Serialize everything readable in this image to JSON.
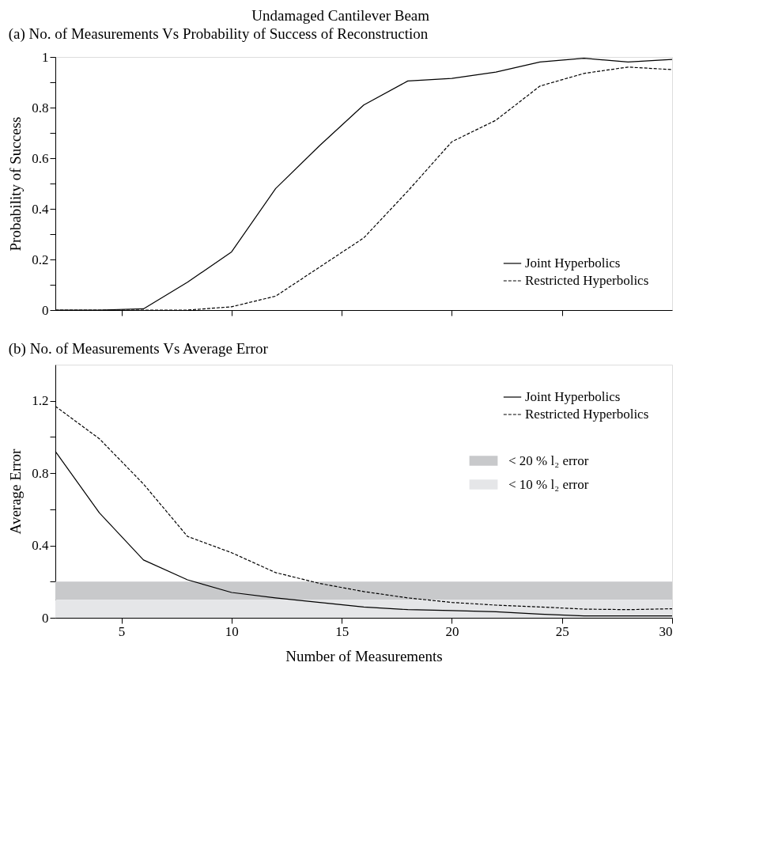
{
  "chart_data": [
    {
      "type": "line",
      "title": "Undamaged Cantilever Beam",
      "subtitle": "(a)  No. of Measurements Vs Probability of Success of Reconstruction",
      "ylabel": "Probability of Success",
      "x": [
        2,
        4,
        6,
        8,
        10,
        12,
        14,
        16,
        18,
        20,
        22,
        24,
        26,
        28,
        30
      ],
      "series": [
        {
          "name": "Joint Hyperbolics",
          "color": "#000000",
          "line_style": "solid",
          "values": [
            0,
            0,
            0.005,
            0.11,
            0.23,
            0.48,
            0.65,
            0.81,
            0.905,
            0.915,
            0.94,
            0.98,
            0.995,
            0.98,
            0.99
          ]
        },
        {
          "name": "Restricted Hyperbolics",
          "color": "#000000",
          "line_style": "dashed",
          "values": [
            0,
            0,
            0,
            0,
            0.013,
            0.055,
            0.17,
            0.285,
            0.47,
            0.665,
            0.75,
            0.885,
            0.935,
            0.96,
            0.95
          ]
        }
      ],
      "xlim": [
        2,
        30
      ],
      "xticks": [
        5,
        10,
        15,
        20,
        25
      ],
      "ylim": [
        0,
        1
      ],
      "yticks": [
        0,
        {
          "value": 0.1,
          "label": null
        },
        0.2,
        {
          "value": 0.3,
          "label": null
        },
        0.4,
        {
          "value": 0.5,
          "label": null
        },
        0.6,
        {
          "value": 0.7,
          "label": null
        },
        0.8,
        {
          "value": 0.9,
          "label": null
        },
        1
      ],
      "tick_labels": "y",
      "grid": false,
      "legend": "bottom right"
    },
    {
      "type": "line",
      "title": "(b)  No. of Measurements Vs Average Error",
      "xlabel": "Number of Measurements",
      "ylabel": "Average Error",
      "x": [
        2,
        4,
        6,
        8,
        10,
        12,
        14,
        16,
        18,
        20,
        22,
        24,
        26,
        28,
        30
      ],
      "series": [
        {
          "name": "Joint Hyperbolics",
          "color": "#000000",
          "line_style": "solid",
          "values": [
            0.92,
            0.58,
            0.32,
            0.21,
            0.14,
            0.11,
            0.085,
            0.06,
            0.045,
            0.04,
            0.033,
            0.02,
            0.01,
            0.01,
            0.01
          ]
        },
        {
          "name": "Restricted Hyperbolics",
          "color": "#000000",
          "line_style": "dashed",
          "values": [
            1.17,
            0.99,
            0.74,
            0.45,
            0.36,
            0.25,
            0.19,
            0.145,
            0.11,
            0.085,
            0.07,
            0.06,
            0.048,
            0.045,
            0.05
          ]
        }
      ],
      "bands": [
        {
          "axis": "y",
          "from": 0.1,
          "to": 0.2,
          "label": "< 20 % l₂ error",
          "color": "#c8c9cb"
        },
        {
          "axis": "y",
          "from": 0,
          "to": 0.1,
          "label": "< 10 % l₂ error",
          "color": "#e5e6e8"
        }
      ],
      "xlim": [
        2,
        30
      ],
      "xticks": [
        5,
        10,
        15,
        20,
        25,
        30
      ],
      "ylim": [
        0,
        1.4
      ],
      "yticks": [
        0,
        {
          "value": 0.2,
          "label": null
        },
        0.4,
        {
          "value": 0.6,
          "label": null
        },
        0.8,
        {
          "value": 1.0,
          "label": null
        },
        1.2
      ],
      "grid": false,
      "legend": "top right"
    }
  ]
}
